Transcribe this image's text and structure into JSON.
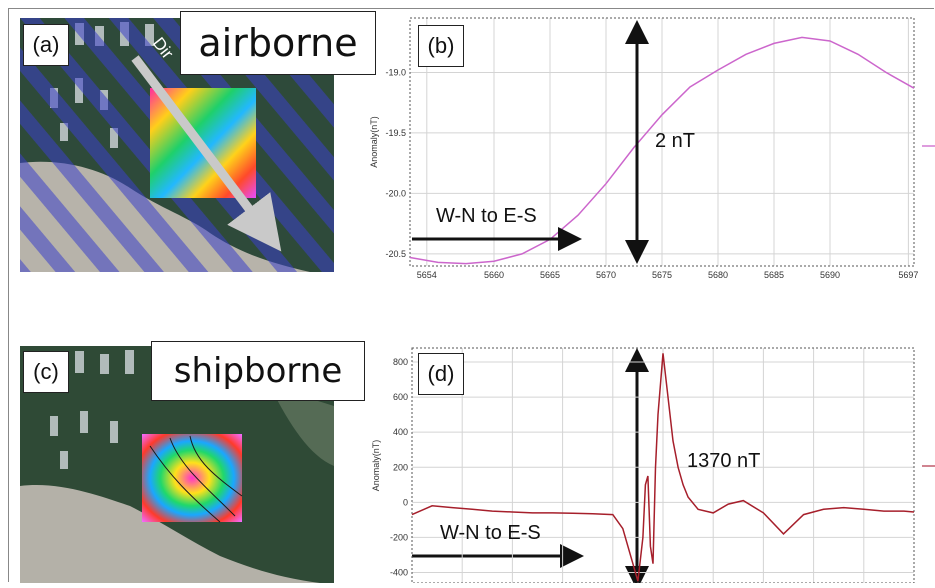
{
  "colors": {
    "airborne_curve": "#cc66cc",
    "shipborne_curve": "#a61f2b",
    "grid": "#d4d4d4",
    "axis": "#666666",
    "arrow": "#111111",
    "overlay_stripes": "#3a3fc8",
    "water": "#2e4a3a",
    "land": "#b7b3aa"
  },
  "panels": {
    "a": {
      "tag": "(a)",
      "title": "airborne",
      "direction_label": "Dir"
    },
    "b": {
      "tag": "(b)",
      "magnitude": "2 nT",
      "direction": "W-N to E-S"
    },
    "c": {
      "tag": "(c)",
      "title": "shipborne"
    },
    "d": {
      "tag": "(d)",
      "magnitude": "1370 nT",
      "direction": "W-N to E-S"
    }
  },
  "chart_data": [
    {
      "type": "line",
      "panel": "b",
      "ylabel": "Anomaly(nT)",
      "xlim": [
        5652.5,
        5697.5
      ],
      "ylim": [
        -20.6,
        -18.55
      ],
      "xticks": [
        5654,
        5660,
        5665,
        5670,
        5675,
        5680,
        5685,
        5690,
        5697
      ],
      "yticks": [
        -20.5,
        -20.0,
        -19.5,
        -19.0
      ],
      "ytick_labels": [
        "-20.5",
        "-20.0",
        "-19.5",
        "-19.0"
      ],
      "grid": true,
      "series": [
        {
          "x": [
            5652.5,
            5655,
            5657.5,
            5660,
            5662.5,
            5665,
            5667.5,
            5670,
            5672.5,
            5675,
            5677.5,
            5680,
            5682.5,
            5685,
            5687.5,
            5690,
            5692.5,
            5695,
            5697.5
          ],
          "y": [
            -20.53,
            -20.57,
            -20.58,
            -20.56,
            -20.5,
            -20.38,
            -20.18,
            -19.92,
            -19.62,
            -19.35,
            -19.12,
            -18.98,
            -18.85,
            -18.76,
            -18.71,
            -18.74,
            -18.85,
            -19.0,
            -19.13
          ]
        }
      ]
    },
    {
      "type": "line",
      "panel": "d",
      "ylabel": "Anomaly(nT)",
      "xlim": [
        0,
        100
      ],
      "ylim": [
        -460,
        880
      ],
      "yticks": [
        -400,
        -200,
        0,
        200,
        400,
        600,
        800
      ],
      "ytick_labels": [
        "-400",
        "-200",
        "0",
        "200",
        "400",
        "600",
        "800"
      ],
      "grid": true,
      "series": [
        {
          "x": [
            0,
            4,
            8,
            12,
            16,
            20,
            24,
            28,
            32,
            36,
            40,
            42,
            44,
            45,
            46,
            46.5,
            47,
            47.5,
            48,
            48.5,
            49,
            50,
            51,
            52,
            53,
            54,
            55,
            57,
            60,
            63,
            66,
            70,
            74,
            78,
            82,
            86,
            90,
            94,
            98,
            100
          ],
          "y": [
            -70,
            -20,
            -30,
            -40,
            -50,
            -55,
            -60,
            -60,
            -62,
            -65,
            -70,
            -150,
            -350,
            -450,
            -200,
            100,
            150,
            -250,
            -350,
            200,
            500,
            850,
            600,
            350,
            200,
            100,
            30,
            -40,
            -60,
            -10,
            10,
            -60,
            -180,
            -70,
            -40,
            -30,
            -40,
            -50,
            -50,
            -55
          ]
        }
      ]
    }
  ]
}
